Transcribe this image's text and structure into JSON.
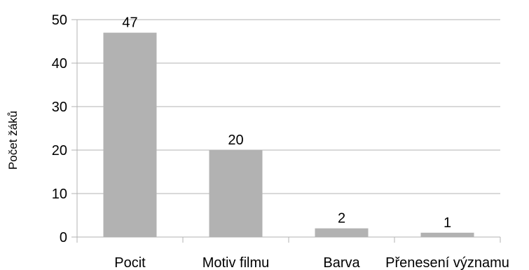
{
  "chart_data": {
    "type": "bar",
    "ylabel": "Počet žáků",
    "categories": [
      "Pocit",
      "Motiv filmu",
      "Barva",
      "Přenesení významu"
    ],
    "values": [
      47,
      20,
      2,
      1
    ],
    "data_labels": [
      "47",
      "20",
      "2",
      "1"
    ],
    "ylim": [
      0,
      50
    ],
    "yticks": [
      "0",
      "10",
      "20",
      "30",
      "40",
      "50"
    ],
    "grid": "horizontal",
    "colors": {
      "bar": "#b2b2b2",
      "grid": "#b3b3b3",
      "axis": "#b3b3b3"
    }
  }
}
